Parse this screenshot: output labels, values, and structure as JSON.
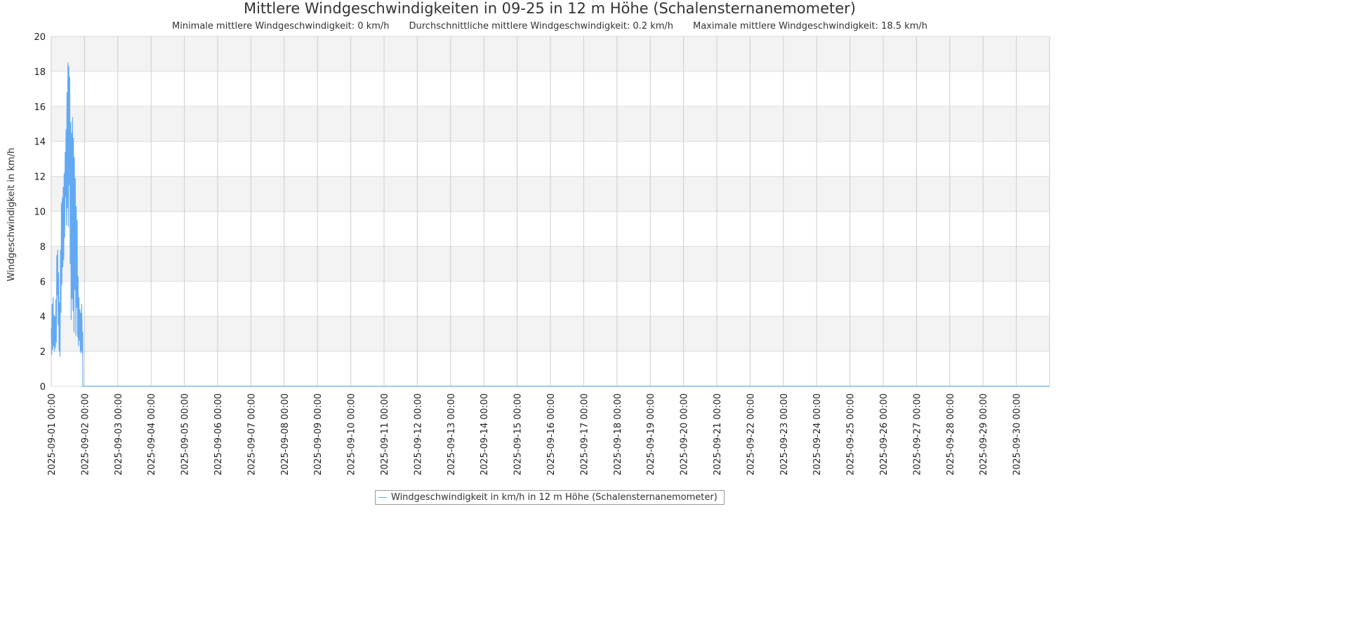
{
  "chart_data": {
    "type": "line",
    "title": "Mittlere Windgeschwindigkeiten in 09-25 in 12 m Höhe (Schalensternanemometer)",
    "subtitle": [
      "Minimale mittlere Windgeschwindigkeit: 0 km/h",
      "Durchschnittliche mittlere Windgeschwindigkeit: 0.2 km/h",
      "Maximale mittlere Windgeschwindigkeit: 18.5 km/h"
    ],
    "xlabel": "",
    "ylabel": "Windgeschwindigkeit in km/h",
    "ylim": [
      0,
      20
    ],
    "xlim": [
      "2025-09-01 00:00",
      "2025-10-01 00:00"
    ],
    "yticks": [
      "0",
      "2",
      "4",
      "6",
      "8",
      "10",
      "12",
      "14",
      "16",
      "18",
      "20"
    ],
    "xticks": [
      "2025-09-01 00:00",
      "2025-09-02 00:00",
      "2025-09-03 00:00",
      "2025-09-04 00:00",
      "2025-09-05 00:00",
      "2025-09-06 00:00",
      "2025-09-07 00:00",
      "2025-09-08 00:00",
      "2025-09-09 00:00",
      "2025-09-10 00:00",
      "2025-09-11 00:00",
      "2025-09-12 00:00",
      "2025-09-13 00:00",
      "2025-09-14 00:00",
      "2025-09-15 00:00",
      "2025-09-16 00:00",
      "2025-09-17 00:00",
      "2025-09-18 00:00",
      "2025-09-19 00:00",
      "2025-09-20 00:00",
      "2025-09-21 00:00",
      "2025-09-22 00:00",
      "2025-09-23 00:00",
      "2025-09-24 00:00",
      "2025-09-25 00:00",
      "2025-09-26 00:00",
      "2025-09-27 00:00",
      "2025-09-28 00:00",
      "2025-09-29 00:00",
      "2025-09-30 00:00"
    ],
    "grid": true,
    "legend_position": "bottom",
    "series": [
      {
        "name": "Windgeschwindigkeit in km/h in 12 m Höhe (Schalensternanemometer)",
        "color": "#62a9f2",
        "points": [
          [
            "2025-09-01 00:00",
            3.3
          ],
          [
            "2025-09-01 00:20",
            1.8
          ],
          [
            "2025-09-01 00:40",
            4.7
          ],
          [
            "2025-09-01 01:00",
            2.1
          ],
          [
            "2025-09-01 01:20",
            5.1
          ],
          [
            "2025-09-01 01:40",
            2.3
          ],
          [
            "2025-09-01 02:00",
            4.1
          ],
          [
            "2025-09-01 02:20",
            2.0
          ],
          [
            "2025-09-01 02:40",
            4.0
          ],
          [
            "2025-09-01 03:00",
            2.2
          ],
          [
            "2025-09-01 03:20",
            5.0
          ],
          [
            "2025-09-01 03:40",
            2.5
          ],
          [
            "2025-09-01 04:00",
            7.5
          ],
          [
            "2025-09-01 04:20",
            5.2
          ],
          [
            "2025-09-01 04:40",
            7.8
          ],
          [
            "2025-09-01 05:00",
            3.5
          ],
          [
            "2025-09-01 05:20",
            6.5
          ],
          [
            "2025-09-01 05:40",
            2.0
          ],
          [
            "2025-09-01 06:00",
            4.8
          ],
          [
            "2025-09-01 06:20",
            1.7
          ],
          [
            "2025-09-01 06:40",
            7.8
          ],
          [
            "2025-09-01 07:00",
            4.2
          ],
          [
            "2025-09-01 07:20",
            10.5
          ],
          [
            "2025-09-01 07:40",
            5.8
          ],
          [
            "2025-09-01 08:00",
            10.8
          ],
          [
            "2025-09-01 08:20",
            6.8
          ],
          [
            "2025-09-01 08:40",
            11.4
          ],
          [
            "2025-09-01 09:00",
            7.2
          ],
          [
            "2025-09-01 09:20",
            12.2
          ],
          [
            "2025-09-01 09:40",
            8.5
          ],
          [
            "2025-09-01 10:00",
            13.4
          ],
          [
            "2025-09-01 10:20",
            10.8
          ],
          [
            "2025-09-01 10:40",
            14.7
          ],
          [
            "2025-09-01 11:00",
            9.2
          ],
          [
            "2025-09-01 11:20",
            16.8
          ],
          [
            "2025-09-01 11:40",
            10.2
          ],
          [
            "2025-09-01 12:00",
            18.5
          ],
          [
            "2025-09-01 12:20",
            9.1
          ],
          [
            "2025-09-01 12:40",
            18.3
          ],
          [
            "2025-09-01 13:00",
            11.5
          ],
          [
            "2025-09-01 13:20",
            17.7
          ],
          [
            "2025-09-01 13:40",
            7.0
          ],
          [
            "2025-09-01 14:00",
            15.1
          ],
          [
            "2025-09-01 14:20",
            3.8
          ],
          [
            "2025-09-01 14:40",
            14.5
          ],
          [
            "2025-09-01 15:00",
            5.0
          ],
          [
            "2025-09-01 15:20",
            15.4
          ],
          [
            "2025-09-01 15:40",
            4.3
          ],
          [
            "2025-09-01 16:00",
            14.2
          ],
          [
            "2025-09-01 16:20",
            3.1
          ],
          [
            "2025-09-01 16:40",
            13.1
          ],
          [
            "2025-09-01 17:00",
            5.5
          ],
          [
            "2025-09-01 17:20",
            11.9
          ],
          [
            "2025-09-01 17:40",
            2.9
          ],
          [
            "2025-09-01 18:00",
            10.3
          ],
          [
            "2025-09-01 18:20",
            4.5
          ],
          [
            "2025-09-01 18:40",
            9.5
          ],
          [
            "2025-09-01 19:00",
            2.8
          ],
          [
            "2025-09-01 19:20",
            6.3
          ],
          [
            "2025-09-01 19:40",
            2.3
          ],
          [
            "2025-09-01 20:00",
            5.1
          ],
          [
            "2025-09-01 20:20",
            2.6
          ],
          [
            "2025-09-01 20:40",
            4.4
          ],
          [
            "2025-09-01 21:00",
            1.9
          ],
          [
            "2025-09-01 21:20",
            4.2
          ],
          [
            "2025-09-01 21:40",
            2.0
          ],
          [
            "2025-09-01 22:00",
            4.7
          ],
          [
            "2025-09-01 22:20",
            1.9
          ],
          [
            "2025-09-01 22:40",
            3.1
          ],
          [
            "2025-09-01 22:50",
            0
          ],
          [
            "2025-09-30 23:50",
            0
          ]
        ]
      }
    ]
  }
}
